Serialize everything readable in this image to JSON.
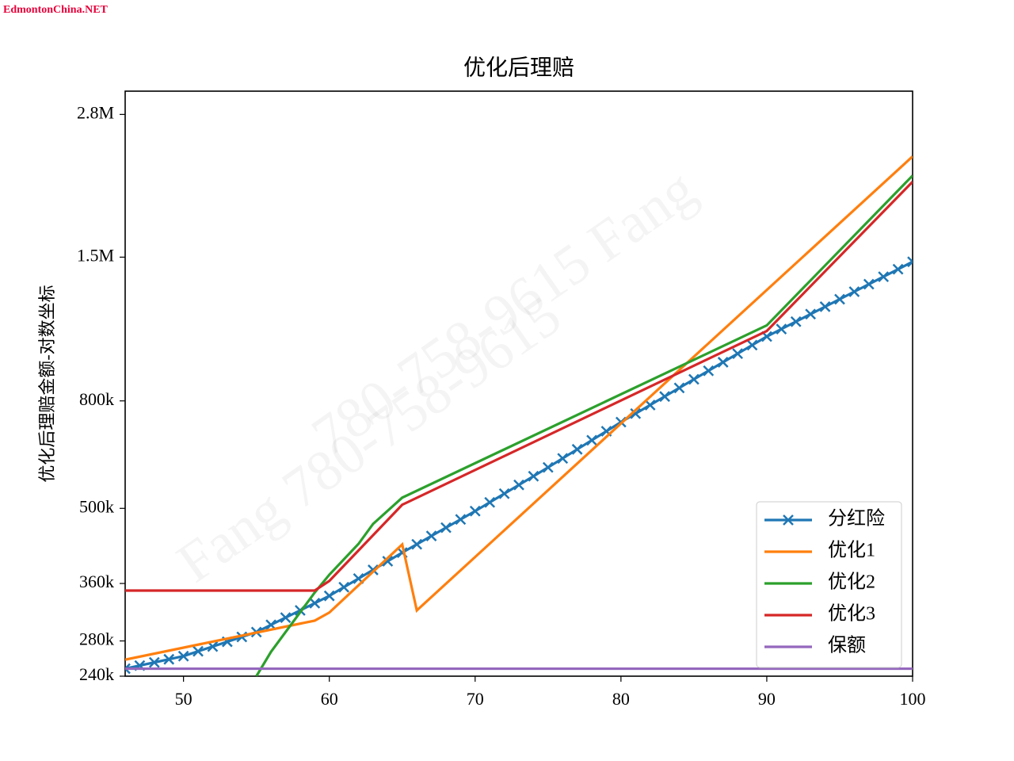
{
  "chart_data": {
    "type": "line",
    "title": "优化后理赔",
    "ylabel": "优化后理赔金额-对数坐标",
    "watermark": "EdmontonChina.NET",
    "background_watermarks": [
      "780-758-9615 Fang",
      "Fang 780-758-9615"
    ],
    "log_y": true,
    "legend": "lower right",
    "xlim": [
      46,
      100
    ],
    "xticks": [
      50,
      60,
      70,
      80,
      90,
      100
    ],
    "ylim": [
      240000,
      3100000
    ],
    "yticks": [
      {
        "value": 240000,
        "label": "240k"
      },
      {
        "value": 280000,
        "label": "280k"
      },
      {
        "value": 360000,
        "label": "360k"
      },
      {
        "value": 500000,
        "label": "500k"
      },
      {
        "value": 800000,
        "label": "800k"
      },
      {
        "value": 1500000,
        "label": "1.5M"
      },
      {
        "value": 2800000,
        "label": "2.8M"
      }
    ],
    "series": [
      {
        "name": "分红险",
        "color": "#1f77b4",
        "marker": "x",
        "x": [
          46,
          47,
          48,
          49,
          50,
          51,
          52,
          53,
          54,
          55,
          56,
          57,
          58,
          59,
          60,
          61,
          62,
          63,
          64,
          65,
          66,
          67,
          68,
          69,
          70,
          71,
          72,
          73,
          74,
          75,
          76,
          77,
          78,
          79,
          80,
          81,
          82,
          83,
          84,
          85,
          86,
          87,
          88,
          89,
          90,
          91,
          92,
          93,
          94,
          95,
          96,
          97,
          98,
          99,
          100
        ],
        "values": [
          248000,
          251400,
          254900,
          258400,
          262000,
          267600,
          273200,
          279000,
          284900,
          291000,
          300400,
          310100,
          320000,
          330300,
          341000,
          354200,
          367800,
          382000,
          396800,
          412000,
          427300,
          443100,
          459500,
          476400,
          494000,
          513200,
          533200,
          553900,
          575500,
          598000,
          622200,
          647300,
          673400,
          700600,
          729000,
          756800,
          785600,
          815500,
          846600,
          879000,
          912600,
          947400,
          983600,
          1021100,
          1060000,
          1095200,
          1131500,
          1169100,
          1207900,
          1248000,
          1289600,
          1332500,
          1376900,
          1422700,
          1470000
        ]
      },
      {
        "name": "优化1",
        "color": "#ff7f0e",
        "x": [
          46,
          59,
          60,
          65,
          66,
          100
        ],
        "values": [
          258000,
          306000,
          317000,
          427000,
          320000,
          2330000
        ]
      },
      {
        "name": "优化2",
        "color": "#2ca02c",
        "x": [
          55,
          56,
          59,
          60,
          62,
          63,
          65,
          90,
          100
        ],
        "values": [
          240000,
          267000,
          346000,
          374000,
          428000,
          467000,
          524000,
          1113000,
          2143000
        ]
      },
      {
        "name": "优化3",
        "color": "#d62728",
        "x": [
          46,
          59,
          60,
          65,
          90,
          100
        ],
        "values": [
          349000,
          349000,
          364000,
          508000,
          1086000,
          2086000
        ]
      },
      {
        "name": "保额",
        "color": "#9467bd",
        "x": [
          46,
          100
        ],
        "values": [
          248000,
          248000
        ]
      }
    ]
  }
}
